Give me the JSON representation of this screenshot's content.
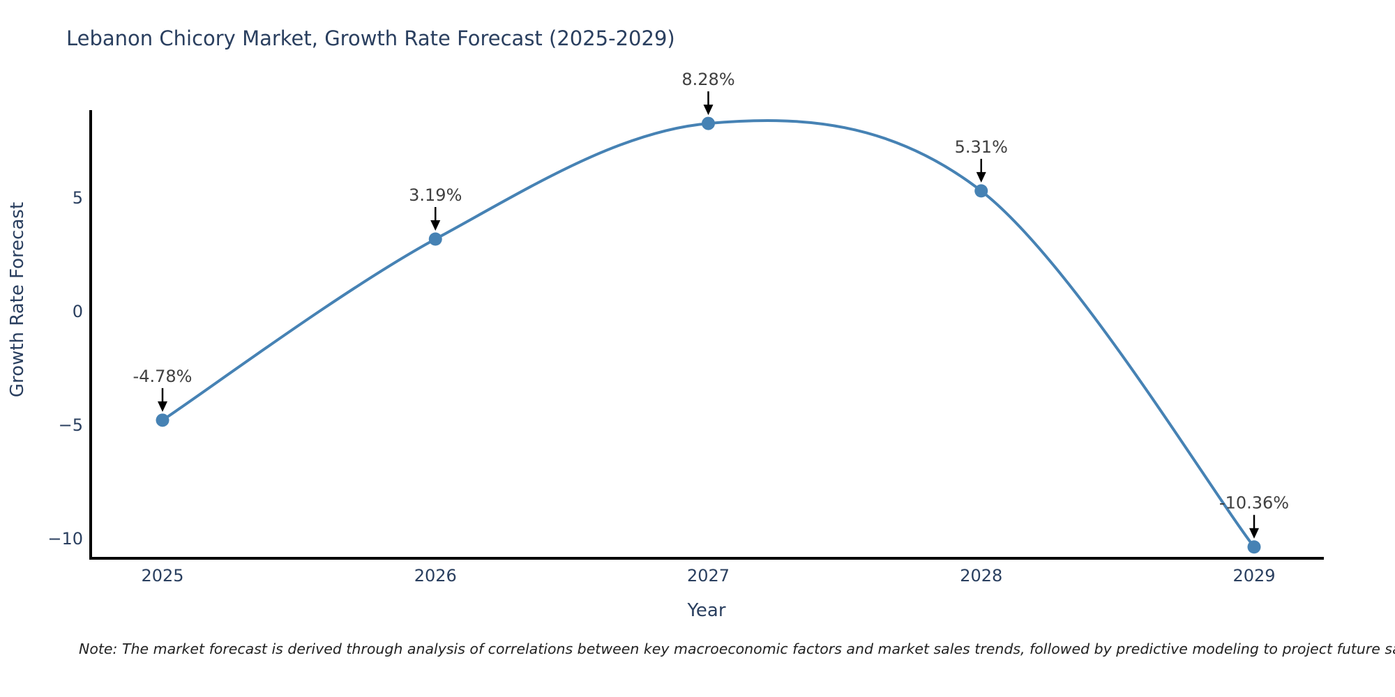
{
  "chart_data": {
    "type": "line",
    "title": "Lebanon Chicory Market, Growth Rate Forecast (2025-2029)",
    "xlabel": "Year",
    "ylabel": "Growth Rate Forecast",
    "x": [
      2025,
      2026,
      2027,
      2028,
      2029
    ],
    "series": [
      {
        "name": "Growth Rate Forecast",
        "values": [
          -4.78,
          3.19,
          8.28,
          5.31,
          -10.36
        ]
      }
    ],
    "point_labels": [
      "-4.78%",
      "3.19%",
      "8.28%",
      "5.31%",
      "-10.36%"
    ],
    "xtick_labels": [
      "2025",
      "2026",
      "2027",
      "2028",
      "2029"
    ],
    "yticks": [
      5,
      0,
      -5,
      -10
    ],
    "ylim": [
      -10.9,
      8.8
    ],
    "grid": false,
    "legend_position": "none",
    "line_shape": "spline",
    "colors": {
      "line": "#4682b4",
      "marker": "#4682b4",
      "annotation_text": "#404040",
      "annotation_arrow": "#000000",
      "axis_line": "#000000",
      "axis_text": "#2a3f5f",
      "title_text": "#2a3f5f",
      "background": "#ffffff"
    }
  },
  "note": "Note: The market forecast is derived through analysis of correlations between key macroeconomic factors and market sales trends, followed by predictive modeling to project future sale"
}
